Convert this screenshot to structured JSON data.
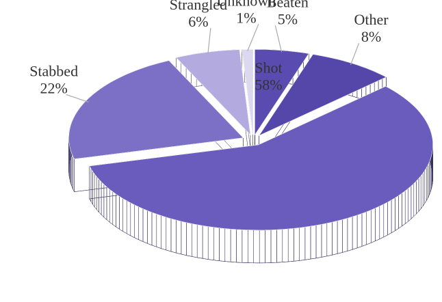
{
  "chart_data": {
    "type": "pie",
    "categories": [
      "Beaten",
      "Other",
      "Shot",
      "Stabbed",
      "Strangled",
      "Unknown"
    ],
    "values": [
      5,
      8,
      58,
      22,
      6,
      1
    ],
    "value_labels": [
      "5%",
      "8%",
      "58%",
      "22%",
      "6%",
      "1%"
    ],
    "colors": [
      "#5a4bb0",
      "#5546aa",
      "#6a5cbc",
      "#7b70c6",
      "#b3abdf",
      "#dcd8f0"
    ]
  }
}
